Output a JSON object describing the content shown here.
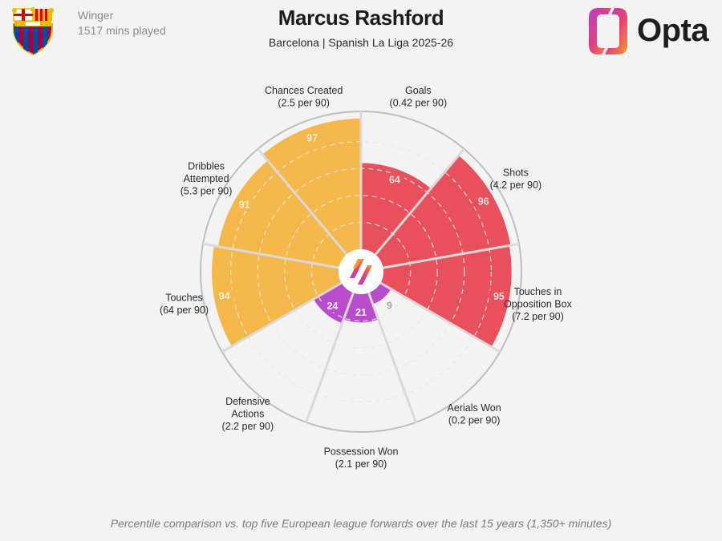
{
  "header": {
    "title": "Marcus Rashford",
    "subtitle": "Barcelona | Spanish La Liga 2025-26",
    "position": "Winger",
    "minutes": "1517 mins played"
  },
  "branding": {
    "logo_text": "Opta"
  },
  "footnote": "Percentile comparison vs. top five European league forwards over the last 15 years (1,350+ minutes)",
  "colors": {
    "attacking": "#e8505c",
    "possession": "#f4b74a",
    "defending": "#b94ccc",
    "grid": "#cccccc",
    "background": "#f3f3f3"
  },
  "chart_data": {
    "type": "radar-percentile",
    "scale": [
      0,
      100
    ],
    "categories": [
      {
        "name": "Goals",
        "line1": "Goals",
        "line2": "",
        "rate": "(0.42 per 90)",
        "value": 64,
        "group": "attacking"
      },
      {
        "name": "Shots",
        "line1": "Shots",
        "line2": "",
        "rate": "(4.2 per 90)",
        "value": 96,
        "group": "attacking"
      },
      {
        "name": "Touches in Opposition Box",
        "line1": "Touches in",
        "line2": "Opposition Box",
        "rate": "(7.2 per 90)",
        "value": 95,
        "group": "attacking"
      },
      {
        "name": "Aerials Won",
        "line1": "Aerials Won",
        "line2": "",
        "rate": "(0.2 per 90)",
        "value": 9,
        "group": "defending"
      },
      {
        "name": "Possession Won",
        "line1": "Possession Won",
        "line2": "",
        "rate": "(2.1 per 90)",
        "value": 21,
        "group": "defending"
      },
      {
        "name": "Defensive Actions",
        "line1": "Defensive",
        "line2": "Actions",
        "rate": "(2.2 per 90)",
        "value": 24,
        "group": "defending"
      },
      {
        "name": "Touches",
        "line1": "Touches",
        "line2": "",
        "rate": "(64 per 90)",
        "value": 94,
        "group": "possession"
      },
      {
        "name": "Dribbles Attempted",
        "line1": "Dribbles",
        "line2": "Attempted",
        "rate": "(5.3 per 90)",
        "value": 91,
        "group": "possession"
      },
      {
        "name": "Chances Created",
        "line1": "Chances Created",
        "line2": "",
        "rate": "(2.5 per 90)",
        "value": 97,
        "group": "possession"
      }
    ]
  }
}
